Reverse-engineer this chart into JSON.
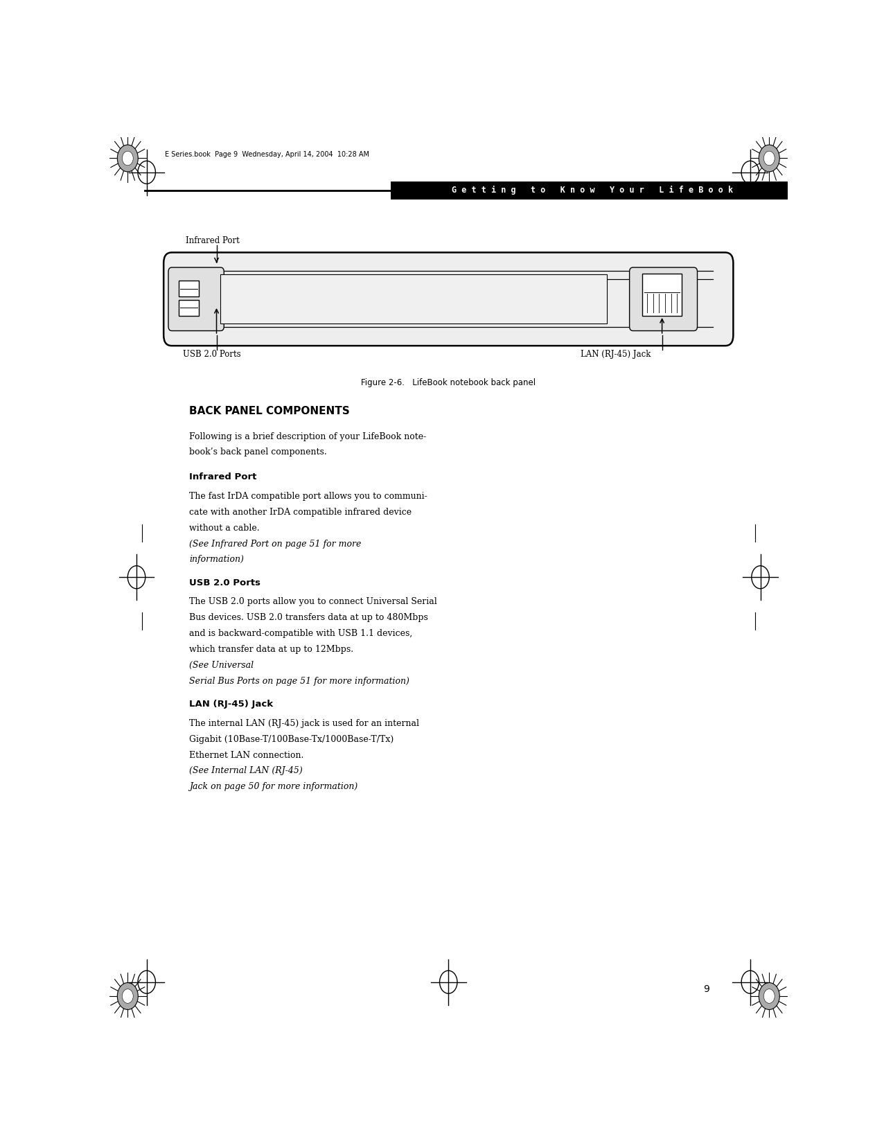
{
  "bg_color": "#ffffff",
  "header_text": "Getting to Know Your LifeBook",
  "header_text_color": "#ffffff",
  "top_strip_text": "E Series.book  Page 9  Wednesday, April 14, 2004  10:28 AM",
  "figure_caption": "Figure 2-6.   LifeBook notebook back panel",
  "section_title": "BACK PANEL COMPONENTS",
  "subsection1_title": "Infrared Port",
  "subsection2_title": "USB 2.0 Ports",
  "subsection3_title": "LAN (RJ-45) Jack",
  "label_infrared": "Infrared Port",
  "label_usb": "USB 2.0 Ports",
  "label_lan": "LAN (RJ-45) Jack",
  "page_number": "9",
  "text_color": "#000000"
}
